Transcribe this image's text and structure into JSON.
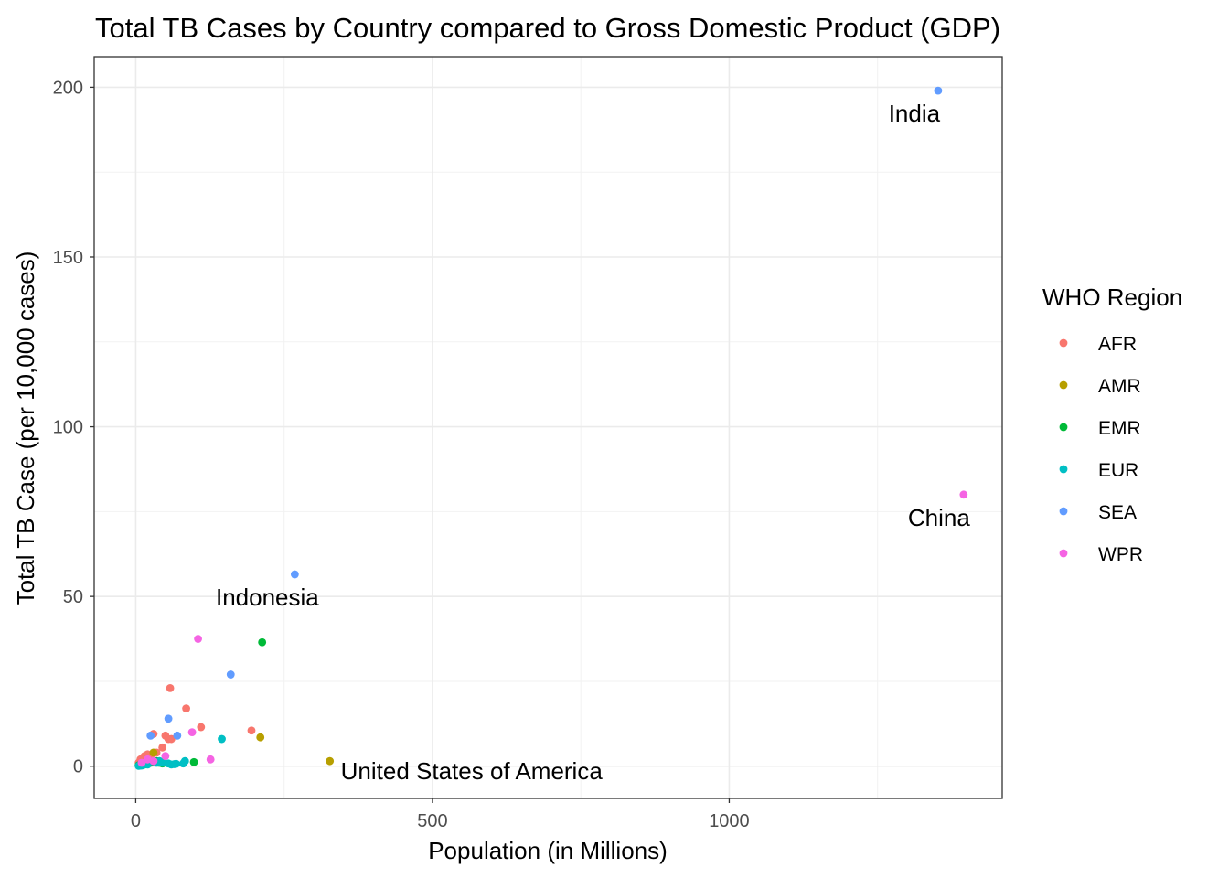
{
  "chart_data": {
    "type": "scatter",
    "title": "Total TB Cases by Country compared to Gross Domestic Product (GDP)",
    "xlabel": "Population (in Millions)",
    "ylabel": "Total TB Case (per 10,000 cases)",
    "xlim": [
      -70,
      1460
    ],
    "ylim": [
      -9.5,
      209
    ],
    "x_ticks": [
      0,
      500,
      1000
    ],
    "x_tick_labels": [
      "0",
      "500",
      "1000"
    ],
    "y_ticks": [
      0,
      50,
      100,
      150,
      200
    ],
    "y_tick_labels": [
      "0",
      "50",
      "100",
      "150",
      "200"
    ],
    "grid": true,
    "legend": {
      "title": "WHO Region",
      "placement": "right",
      "entries": [
        {
          "name": "AFR",
          "color": "#F8766D"
        },
        {
          "name": "AMR",
          "color": "#B79F00"
        },
        {
          "name": "EMR",
          "color": "#00BA38"
        },
        {
          "name": "EUR",
          "color": "#00BFC4"
        },
        {
          "name": "SEA",
          "color": "#619CFF"
        },
        {
          "name": "WPR",
          "color": "#F564E3"
        }
      ]
    },
    "series": [
      {
        "name": "AFR",
        "x": [
          5,
          8,
          10,
          12,
          15,
          18,
          20,
          22,
          25,
          30,
          35,
          45,
          50,
          55,
          58,
          60,
          85,
          110,
          195
        ],
        "y": [
          1,
          2,
          1.5,
          2.5,
          3,
          2,
          3.5,
          2,
          3,
          9.5,
          4,
          5.5,
          9,
          8,
          23,
          8,
          17,
          11.5,
          10.5
        ]
      },
      {
        "name": "AMR",
        "x": [
          10,
          18,
          30,
          210,
          327
        ],
        "y": [
          0.5,
          1,
          4,
          8.5,
          1.5
        ]
      },
      {
        "name": "EMR",
        "x": [
          5,
          8,
          10,
          12,
          15,
          20,
          25,
          30,
          35,
          40,
          45,
          98,
          213
        ],
        "y": [
          0.3,
          0.5,
          0.4,
          0.6,
          0.5,
          0.8,
          1,
          1.2,
          1.5,
          1,
          0.8,
          1.2,
          36.5
        ]
      },
      {
        "name": "EUR",
        "x": [
          5,
          8,
          10,
          12,
          20,
          35,
          40,
          45,
          55,
          60,
          65,
          68,
          80,
          83,
          145
        ],
        "y": [
          0.1,
          0.2,
          0.2,
          0.3,
          0.5,
          1,
          1.5,
          1,
          0.8,
          0.5,
          0.6,
          0.7,
          0.8,
          1.5,
          8
        ]
      },
      {
        "name": "SEA",
        "x": [
          25,
          55,
          70,
          160,
          268,
          1352
        ],
        "y": [
          9,
          14,
          9,
          27,
          56.5,
          199
        ]
      },
      {
        "name": "WPR",
        "x": [
          10,
          20,
          30,
          50,
          95,
          105,
          126,
          1395
        ],
        "y": [
          1,
          2,
          1.5,
          3,
          10,
          37.5,
          2,
          80
        ]
      }
    ],
    "annotations": [
      {
        "text": "India",
        "x": 1352,
        "y": 199
      },
      {
        "text": "China",
        "x": 1395,
        "y": 80
      },
      {
        "text": "Indonesia",
        "x": 268,
        "y": 56.5
      },
      {
        "text": "United States of America",
        "x": 327,
        "y": 1.5
      }
    ]
  }
}
